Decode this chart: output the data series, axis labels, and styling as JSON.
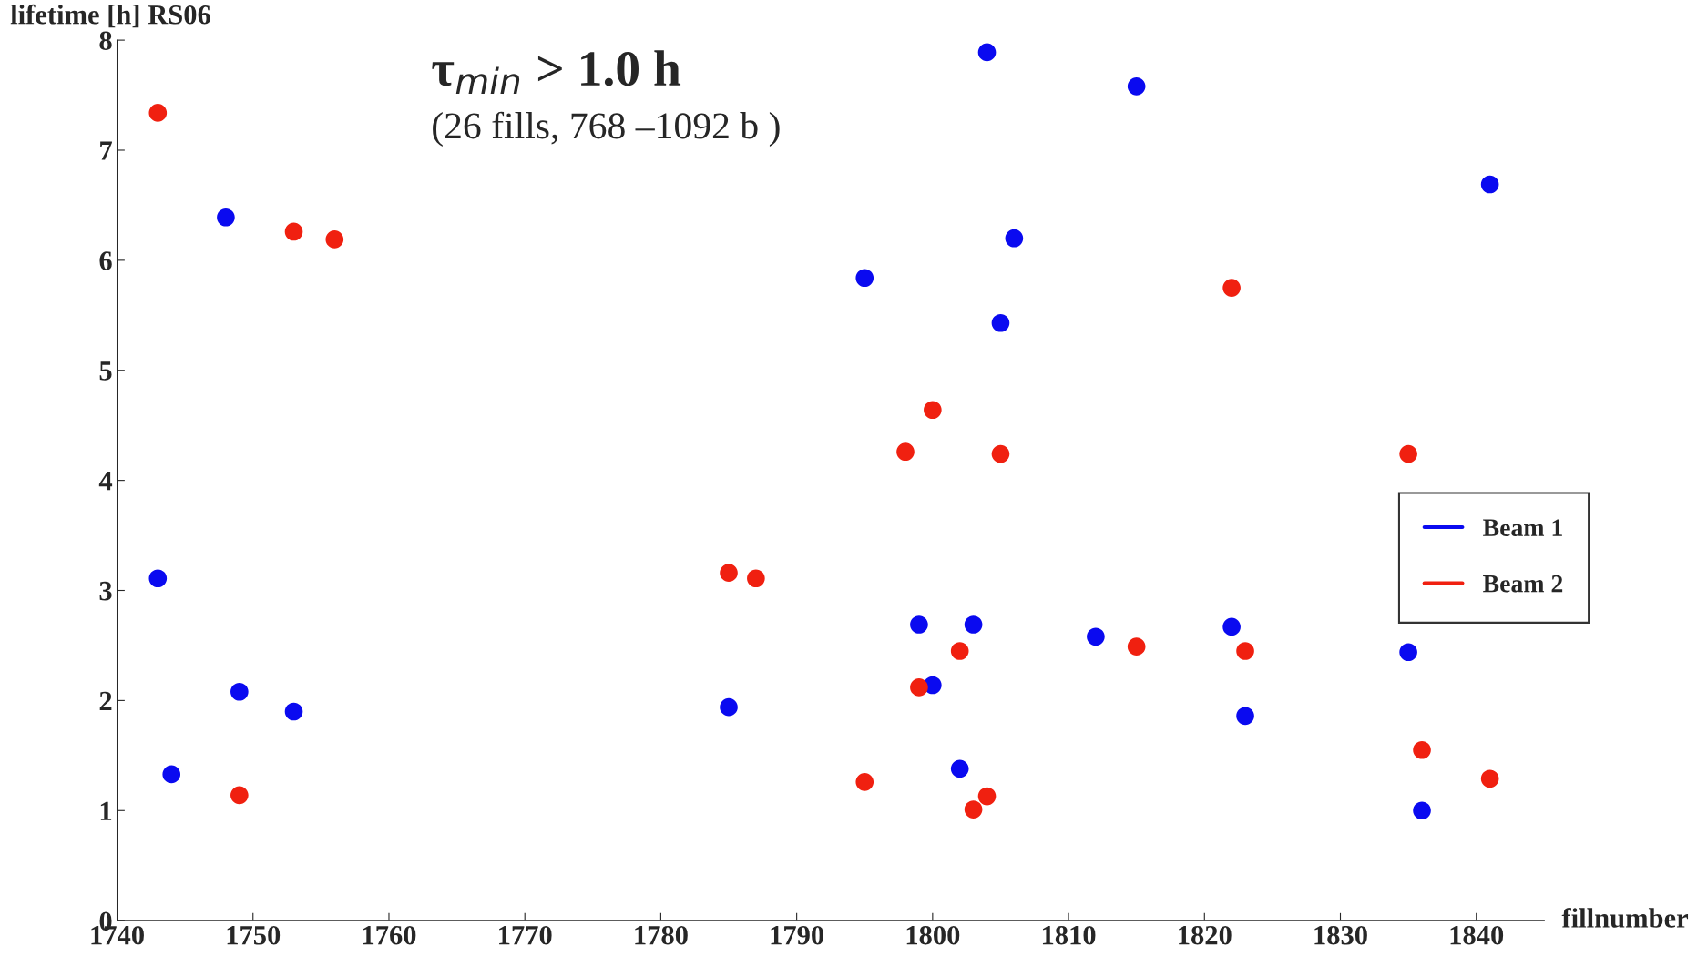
{
  "chart_data": {
    "type": "scatter",
    "title": "τ$_{min}$ > 1.0 h",
    "subtitle": "(26 fills, 768 –1092 b )",
    "xlabel": "fillnumber",
    "ylabel": "lifetime [h] RS06",
    "xlim": [
      1740,
      1845
    ],
    "xticks": [
      1740,
      1750,
      1760,
      1770,
      1780,
      1790,
      1800,
      1810,
      1820,
      1830,
      1840
    ],
    "ylim": [
      0,
      8
    ],
    "yticks": [
      0,
      1,
      2,
      3,
      4,
      5,
      6,
      7,
      8
    ],
    "grid": false,
    "legend": "right",
    "marker": "circle",
    "series": [
      {
        "name": "Beam 1",
        "color": "#0a0af0",
        "x": [
          1743,
          1744,
          1748,
          1749,
          1753,
          1785,
          1795,
          1799,
          1800,
          1802,
          1803,
          1804,
          1805,
          1806,
          1812,
          1815,
          1822,
          1823,
          1835,
          1836,
          1841
        ],
        "values": [
          3.11,
          1.33,
          6.39,
          2.08,
          1.9,
          1.94,
          5.84,
          2.69,
          2.14,
          1.38,
          2.69,
          7.89,
          5.43,
          6.2,
          2.58,
          7.58,
          2.67,
          1.86,
          2.44,
          1.0,
          6.69
        ]
      },
      {
        "name": "Beam 2",
        "color": "#f02010",
        "x": [
          1743,
          1749,
          1753,
          1756,
          1785,
          1787,
          1795,
          1798,
          1799,
          1800,
          1802,
          1803,
          1804,
          1805,
          1815,
          1822,
          1823,
          1835,
          1836,
          1841
        ],
        "values": [
          7.34,
          1.14,
          6.26,
          6.19,
          3.16,
          3.11,
          1.26,
          4.26,
          2.12,
          4.64,
          2.45,
          1.01,
          1.13,
          4.24,
          2.49,
          5.75,
          2.45,
          4.24,
          1.55,
          1.29
        ]
      }
    ]
  }
}
